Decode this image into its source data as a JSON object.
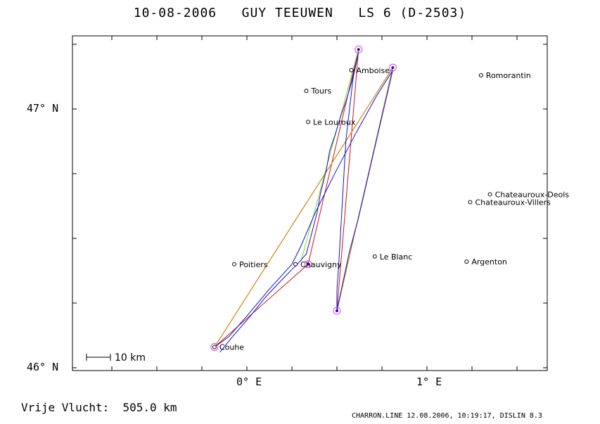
{
  "title": "10-08-2006   GUY TEEUWEN   LS 6 (D-2503)",
  "axis": {
    "lat_ticks": [
      {
        "label": "47° N",
        "lat": 47.0
      },
      {
        "label": "46° N",
        "lat": 46.0
      }
    ],
    "lon_ticks": [
      {
        "label": "0° E",
        "lon": 0.0
      },
      {
        "label": "1° E",
        "lon": 1.0
      }
    ]
  },
  "scale_bar": {
    "label": "10 km"
  },
  "places": [
    {
      "name": "Amboise",
      "lon": 0.58,
      "lat": 47.15
    },
    {
      "name": "Romorantin",
      "lon": 1.3,
      "lat": 47.13
    },
    {
      "name": "Tours",
      "lon": 0.33,
      "lat": 47.07
    },
    {
      "name": "Le Louroux",
      "lon": 0.34,
      "lat": 46.95
    },
    {
      "name": "Chateauroux-Deols",
      "lon": 1.35,
      "lat": 46.67
    },
    {
      "name": "Chateauroux-Villers",
      "lon": 1.24,
      "lat": 46.64
    },
    {
      "name": "Poitiers",
      "lon": -0.07,
      "lat": 46.4
    },
    {
      "name": "Chauvigny",
      "lon": 0.27,
      "lat": 46.4
    },
    {
      "name": "Le Blanc",
      "lon": 0.71,
      "lat": 46.43
    },
    {
      "name": "Argenton",
      "lon": 1.22,
      "lat": 46.41
    },
    {
      "name": "Couhe",
      "lon": -0.18,
      "lat": 46.08
    }
  ],
  "turnpoints": [
    {
      "lon": 0.62,
      "lat": 47.23
    },
    {
      "lon": 0.81,
      "lat": 47.16
    },
    {
      "lon": 0.5,
      "lat": 46.22
    },
    {
      "lon": 0.34,
      "lat": 46.4
    },
    {
      "lon": -0.18,
      "lat": 46.08
    }
  ],
  "route_legs": {
    "red": [
      [
        0.34,
        46.4
      ],
      [
        0.62,
        47.23
      ],
      [
        0.5,
        46.22
      ],
      [
        0.81,
        47.16
      ],
      [
        -0.18,
        46.08
      ],
      [
        0.34,
        46.4
      ]
    ],
    "green": [
      [
        0.3,
        46.41
      ],
      [
        0.62,
        47.23
      ]
    ],
    "orange": [
      [
        -0.18,
        46.08
      ],
      [
        0.81,
        47.16
      ],
      [
        0.5,
        46.22
      ]
    ]
  },
  "flight_track": [
    [
      -0.15,
      46.06
    ],
    [
      -0.08,
      46.12
    ],
    [
      0.02,
      46.2
    ],
    [
      0.1,
      46.27
    ],
    [
      0.18,
      46.33
    ],
    [
      0.25,
      46.38
    ],
    [
      0.28,
      46.4
    ],
    [
      0.33,
      46.44
    ],
    [
      0.36,
      46.52
    ],
    [
      0.39,
      46.6
    ],
    [
      0.41,
      46.68
    ],
    [
      0.44,
      46.76
    ],
    [
      0.46,
      46.84
    ],
    [
      0.49,
      46.9
    ],
    [
      0.52,
      46.97
    ],
    [
      0.55,
      47.03
    ],
    [
      0.58,
      47.1
    ],
    [
      0.6,
      47.16
    ],
    [
      0.62,
      47.22
    ],
    [
      0.59,
      47.12
    ],
    [
      0.57,
      47.0
    ],
    [
      0.55,
      46.88
    ],
    [
      0.54,
      46.76
    ],
    [
      0.53,
      46.64
    ],
    [
      0.52,
      46.52
    ],
    [
      0.51,
      46.4
    ],
    [
      0.5,
      46.3
    ],
    [
      0.5,
      46.22
    ],
    [
      0.53,
      46.32
    ],
    [
      0.57,
      46.45
    ],
    [
      0.62,
      46.58
    ],
    [
      0.66,
      46.7
    ],
    [
      0.7,
      46.82
    ],
    [
      0.74,
      46.94
    ],
    [
      0.78,
      47.06
    ],
    [
      0.81,
      47.15
    ],
    [
      0.72,
      47.05
    ],
    [
      0.6,
      46.9
    ],
    [
      0.48,
      46.74
    ],
    [
      0.38,
      46.6
    ],
    [
      0.3,
      46.47
    ],
    [
      0.25,
      46.4
    ],
    [
      0.12,
      46.3
    ],
    [
      0.0,
      46.2
    ],
    [
      -0.1,
      46.12
    ],
    [
      -0.18,
      46.08
    ]
  ],
  "footer": {
    "free_flight": "Vrije Vlucht:  505.0 km",
    "program_info": "CHARRON.LINE 12.08.2006, 10:19:17, DISLIN 8.3"
  },
  "colors": {
    "track": "#1010d0",
    "route_red": "#d01010",
    "route_green": "#80e020",
    "route_orange": "#d09000",
    "turnpoint_circle": "#e040e0",
    "frame": "#000000"
  }
}
